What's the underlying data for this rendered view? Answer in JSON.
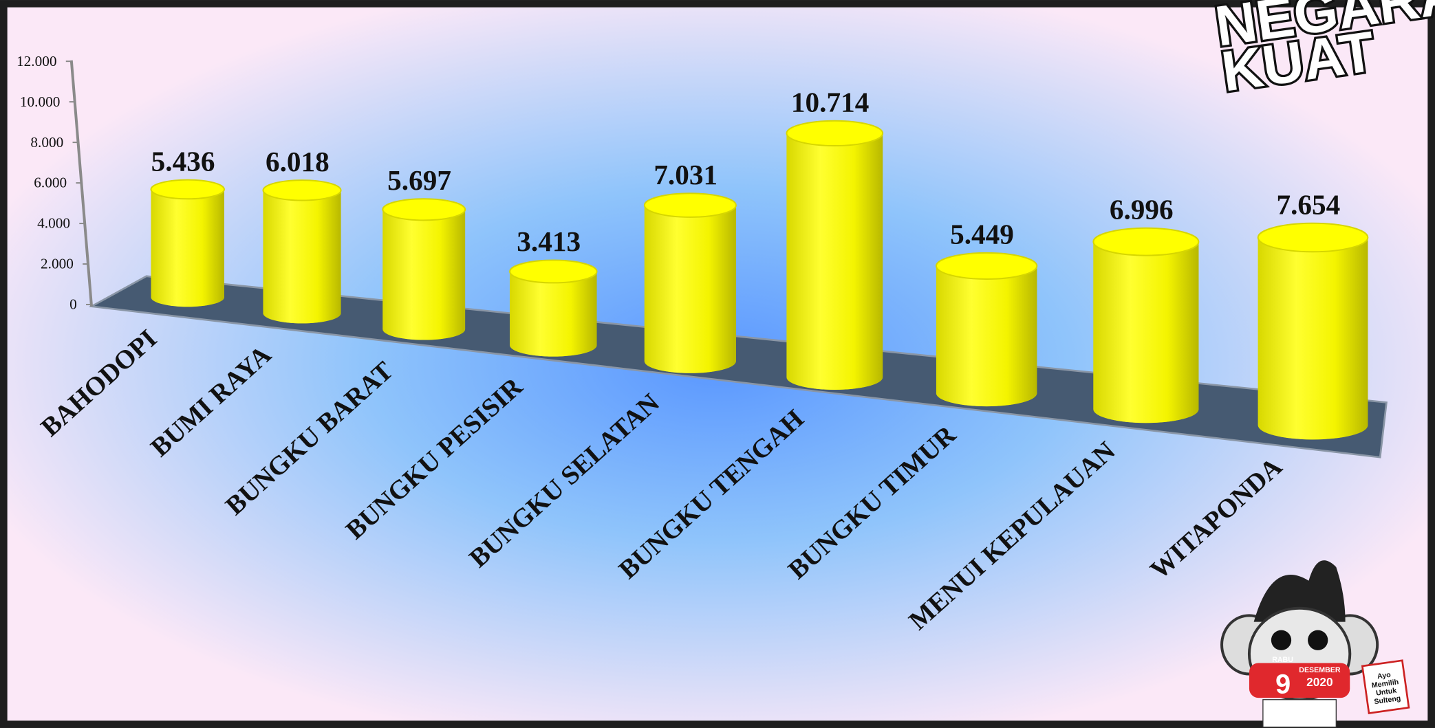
{
  "chart_data": {
    "type": "bar3d",
    "categories": [
      "BAHODOPI",
      "BUMI RAYA",
      "BUNGKU BARAT",
      "BUNGKU PESISIR",
      "BUNGKU SELATAN",
      "BUNGKU TENGAH",
      "BUNGKU TIMUR",
      "MENUI KEPULAUAN",
      "WITAPONDA"
    ],
    "values": [
      5436,
      6018,
      5697,
      3413,
      7031,
      10714,
      5449,
      6996,
      7654
    ],
    "value_labels": [
      "5.436",
      "6.018",
      "5.697",
      "3.413",
      "7.031",
      "10.714",
      "5.449",
      "6.996",
      "7.654"
    ],
    "color": "#ffff00",
    "ylim": [
      0,
      12000
    ],
    "yticks": [
      0,
      {
        "value": 2000,
        "label": "2.000"
      },
      {
        "value": 4000,
        "label": "4.000"
      },
      {
        "value": 6000,
        "label": "6.000"
      },
      {
        "value": 8000,
        "label": "8.000"
      },
      {
        "value": 10000,
        "label": "10.000"
      },
      {
        "value": 12000,
        "label": "12.000"
      }
    ],
    "grid": false
  },
  "logo": {
    "line1": "NEGARA",
    "line2": "KUAT"
  },
  "mascot": {
    "day": "RABU",
    "date": "9",
    "month": "DESEMBER",
    "year": "2020",
    "sign": "Ayo Memilih Untuk Sulteng"
  }
}
